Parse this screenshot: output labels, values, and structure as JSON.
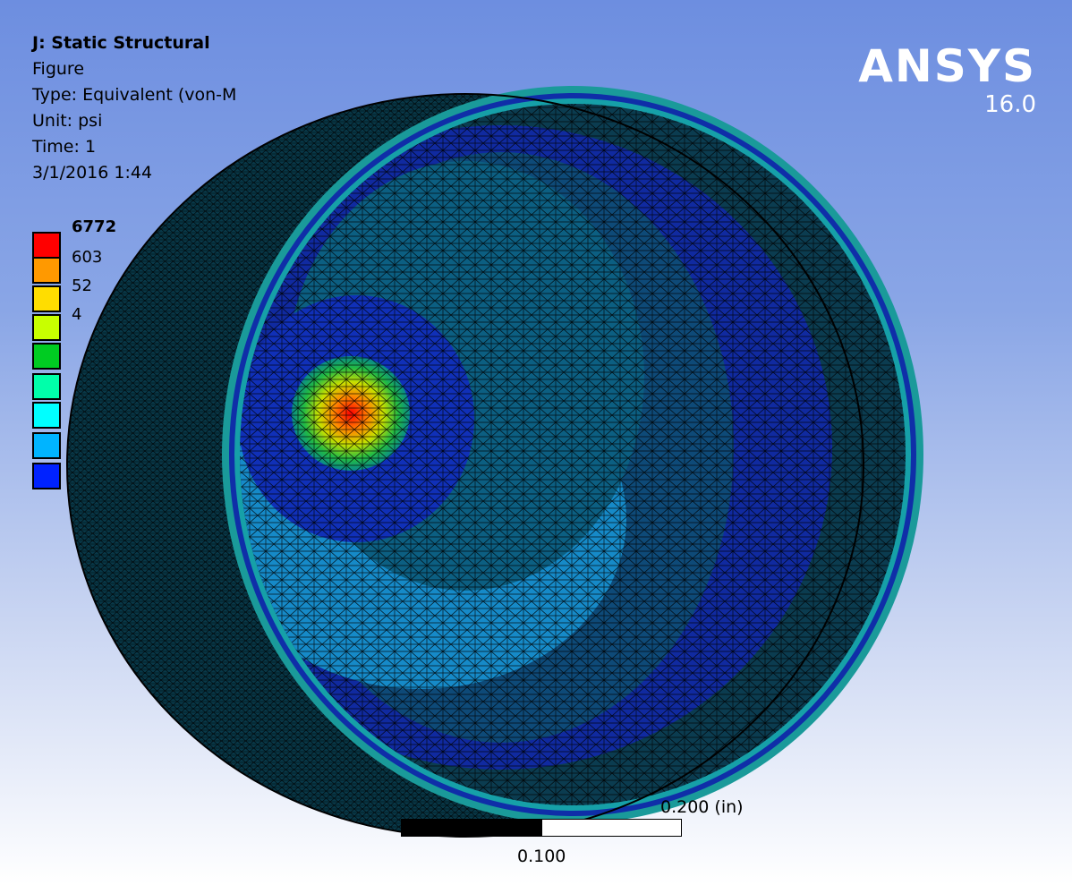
{
  "header": {
    "analysis": "J: Static Structural",
    "result_name": "Figure",
    "type": "Type: Equivalent (von-M",
    "unit": "Unit: psi",
    "time": "Time: 1",
    "date": "3/1/2016 1:44"
  },
  "brand": {
    "logo": "ANSYS",
    "version": "16.0"
  },
  "legend": {
    "labels": [
      "6772",
      "603",
      "52",
      "4",
      "",
      "",
      "",
      "",
      ""
    ],
    "colors": [
      "#ff0000",
      "#ff9900",
      "#ffdd00",
      "#c8ff00",
      "#00cc22",
      "#00ffaa",
      "#00ffff",
      "#00b4ff",
      "#0022ff"
    ]
  },
  "scale_bar": {
    "label_top": "0.200 (in)",
    "label_mid": "0.100"
  },
  "colors": {
    "background_top": "#6d8ee0",
    "background_bottom": "#ffffff",
    "shell": "#0a4458",
    "band_dark": "#0f2ea8",
    "band_light": "#1584bf",
    "hotspot": "#ff0000"
  }
}
